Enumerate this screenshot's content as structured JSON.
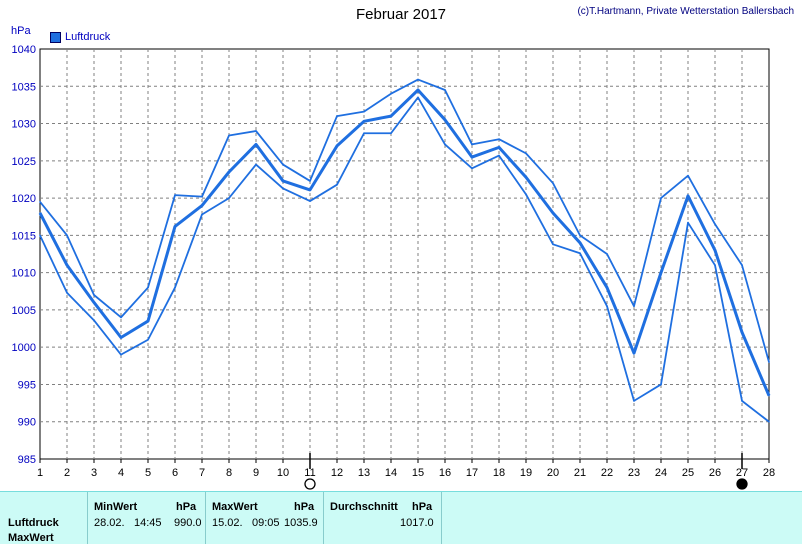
{
  "header": {
    "title": "Februar 2017",
    "credit": "(c)T.Hartmann, Private Wetterstation Ballersbach",
    "unit": "hPa",
    "legend_label": "Luftdruck"
  },
  "colors": {
    "line": "#1f6fe0",
    "grid": "#808080",
    "panel_bg": "#ccfbf6"
  },
  "chart_data": {
    "type": "line",
    "title": "Februar 2017",
    "ylabel": "hPa",
    "x": [
      1,
      2,
      3,
      4,
      5,
      6,
      7,
      8,
      9,
      10,
      11,
      12,
      13,
      14,
      15,
      16,
      17,
      18,
      19,
      20,
      21,
      22,
      23,
      24,
      25,
      26,
      27,
      28
    ],
    "ylim": [
      985,
      1040
    ],
    "yticks": [
      985,
      990,
      995,
      1000,
      1005,
      1010,
      1015,
      1020,
      1025,
      1030,
      1035,
      1040
    ],
    "grid": true,
    "legend_placement": "top-left",
    "series": [
      {
        "name": "Luftdruck",
        "role": "max",
        "values": [
          1019.5,
          1015,
          1007,
          1004,
          1008,
          1020.4,
          1020.2,
          1028.4,
          1029,
          1024.5,
          1022.3,
          1031,
          1031.6,
          1034,
          1035.9,
          1034.5,
          1027.2,
          1027.9,
          1026,
          1022,
          1015,
          1012.5,
          1005.5,
          1020,
          1023,
          1016.5,
          1011,
          998
        ]
      },
      {
        "name": "Luftdruck",
        "role": "mean",
        "values": [
          1018,
          1011,
          1006,
          1001.3,
          1003.5,
          1016.2,
          1019,
          1023.5,
          1027.2,
          1022.3,
          1021.1,
          1027,
          1030.3,
          1031,
          1034.5,
          1030.5,
          1025.5,
          1026.8,
          1022.8,
          1018,
          1014,
          1008,
          999.2,
          1010,
          1020.3,
          1013,
          1002,
          993.5
        ]
      },
      {
        "name": "Luftdruck",
        "role": "min",
        "values": [
          1015,
          1007.3,
          1003.6,
          999,
          1001,
          1008,
          1017.8,
          1020,
          1024.5,
          1021.3,
          1019.6,
          1021.8,
          1028.7,
          1028.7,
          1033.5,
          1027.2,
          1024,
          1025.7,
          1020.5,
          1013.8,
          1012.6,
          1005.5,
          992.8,
          995,
          1016.7,
          1011,
          992.8,
          990
        ]
      }
    ],
    "markers": [
      {
        "x": 11,
        "type": "empty-circle"
      },
      {
        "x": 27,
        "type": "filled-circle"
      }
    ]
  },
  "stats": {
    "min_label": "MinWert",
    "min_unit": "hPa",
    "min_date": "28.02.",
    "min_time": "14:45",
    "min_value": "990.0",
    "max_label": "MaxWert",
    "max_unit": "hPa",
    "max_date": "15.02.",
    "max_time": "09:05",
    "max_value": "1035.9",
    "avg_label": "Durchschnitt",
    "avg_unit": "hPa",
    "avg_value": "1017.0",
    "row1": "Luftdruck",
    "row2": "MaxWert"
  }
}
